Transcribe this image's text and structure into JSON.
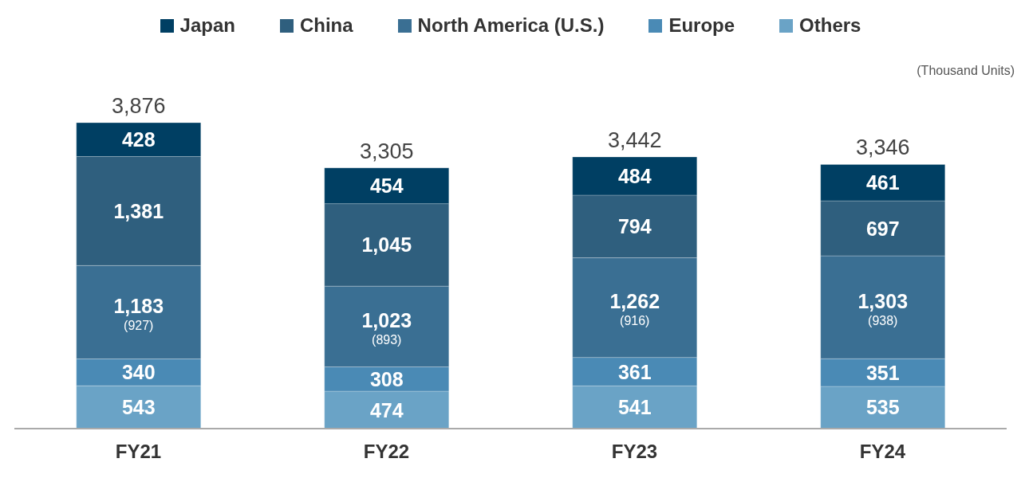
{
  "chart_data": {
    "type": "bar",
    "stacked": true,
    "legend": "top",
    "categories": [
      "FY21",
      "FY22",
      "FY23",
      "FY24"
    ],
    "series": [
      {
        "name": "Others",
        "color": "#6aa3c6",
        "values": [
          543,
          474,
          541,
          535
        ],
        "value_labels": [
          "543",
          "474",
          "541",
          "535"
        ]
      },
      {
        "name": "Europe",
        "color": "#4a8ab5",
        "values": [
          340,
          308,
          361,
          351
        ],
        "value_labels": [
          "340",
          "308",
          "361",
          "351"
        ]
      },
      {
        "name": "North America (U.S.)",
        "color": "#3a6f93",
        "values": [
          1183,
          1023,
          1262,
          1303
        ],
        "value_labels": [
          "1,183\n(927)",
          "1,023\n(893)",
          "1,262\n(916)",
          "1,303\n(938)"
        ]
      },
      {
        "name": "China",
        "color": "#2f5f7e",
        "values": [
          1381,
          1045,
          794,
          697
        ],
        "value_labels": [
          "1,381",
          "1,045",
          "794",
          "697"
        ]
      },
      {
        "name": "Japan",
        "color": "#003f63",
        "values": [
          428,
          454,
          484,
          461
        ],
        "value_labels": [
          "428",
          "454",
          "484",
          "461"
        ]
      }
    ],
    "totals": [
      "3,876",
      "3,305",
      "3,442",
      "3,346"
    ],
    "annotations": [
      "(Thousand Units)"
    ]
  }
}
